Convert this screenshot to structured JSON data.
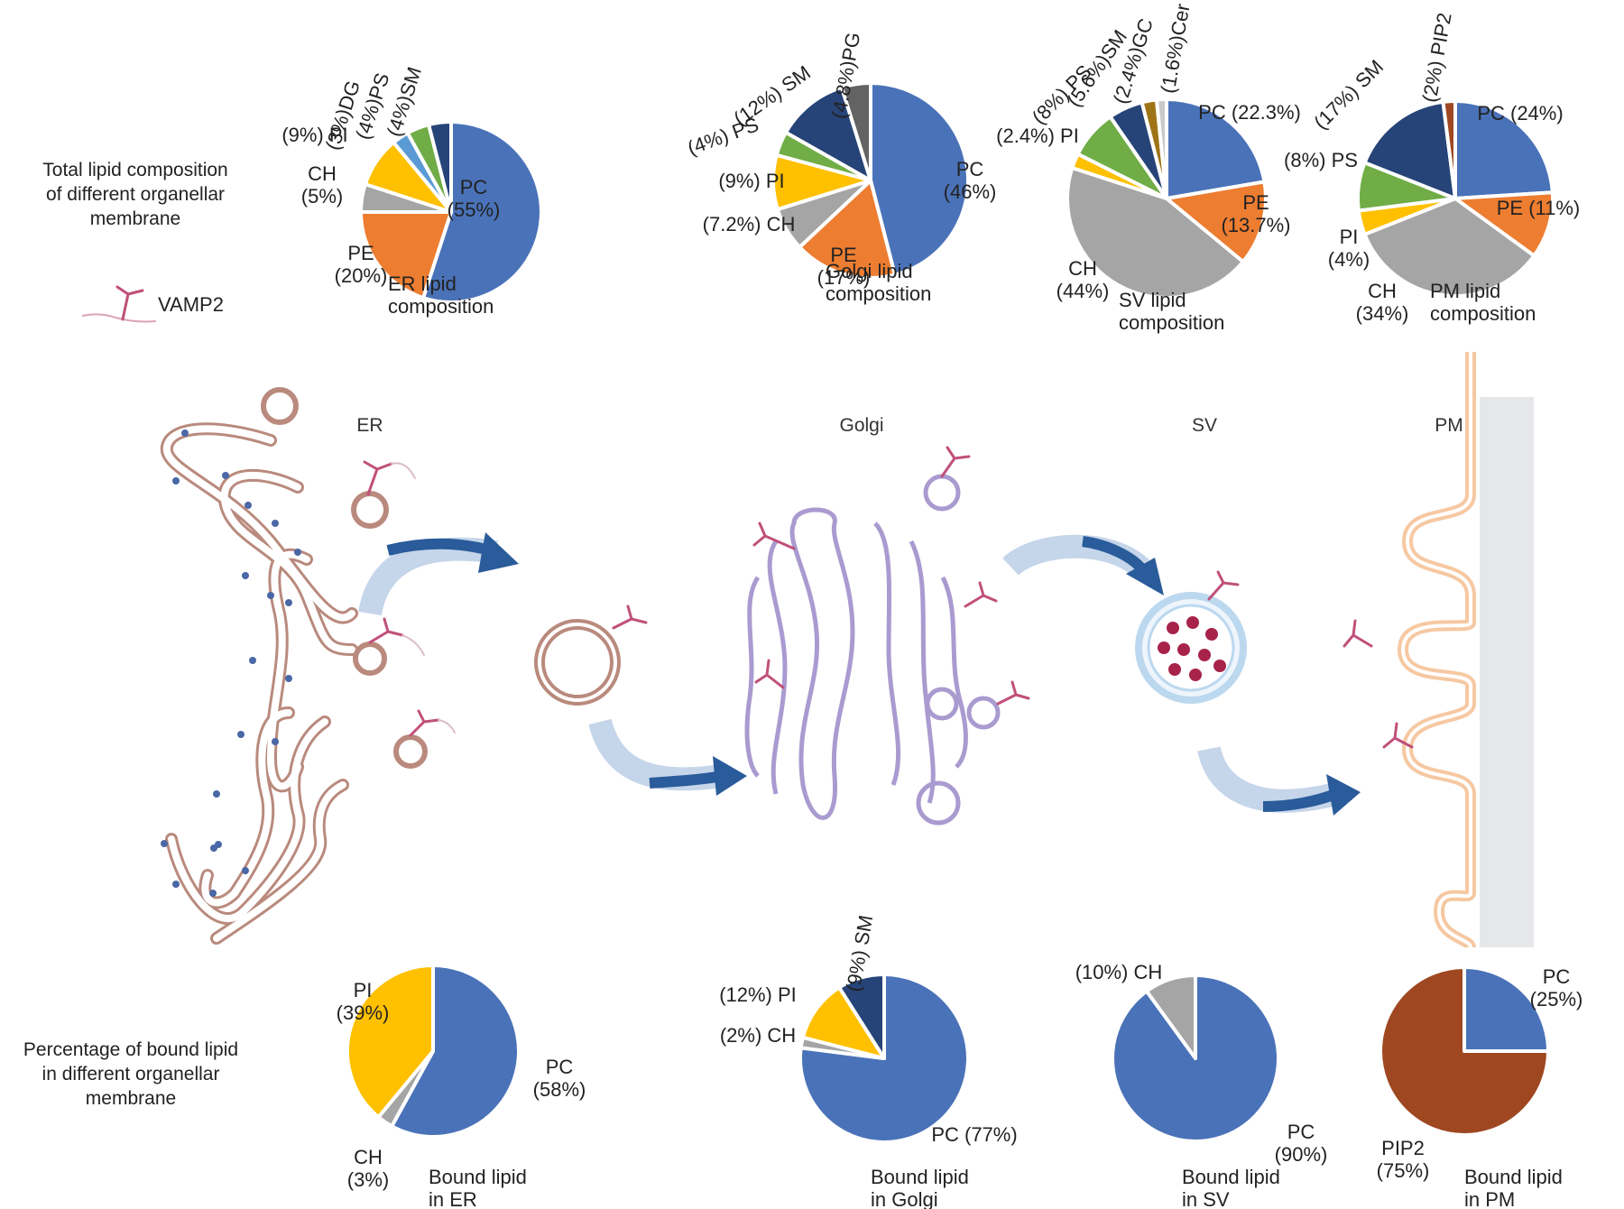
{
  "side_labels": {
    "top": [
      "Total lipid composition",
      "of different organellar",
      "membrane"
    ],
    "bottom": [
      "Percentage of bound lipid",
      "in different organellar",
      "membrane"
    ]
  },
  "legend": {
    "vamp2": "VAMP2"
  },
  "organelles": {
    "er": "ER",
    "golgi": "Golgi",
    "sv": "SV",
    "pm": "PM"
  },
  "colors": {
    "PC": "#4A72B8",
    "PE": "#ED7D31",
    "CH": "#A5A5A5",
    "PI": "#FFC000",
    "DG": "#5B9BD5",
    "PS": "#70AD47",
    "SM": "#264478",
    "PG": "#636363",
    "GC": "#9E7417",
    "Cer": "#C9C9C9",
    "PIP2": "#9E4721",
    "er_membrane": "#b98a7d",
    "golgi_membrane": "#a99bd0",
    "sv_membrane": "#bcd8ef",
    "pm_membrane": "#f6c8a2",
    "ribosome": "#4a67a6",
    "arrow": "#2a5b9a",
    "vamp2": "#c0507a"
  },
  "chart_data": [
    {
      "type": "pie",
      "id": "er_total",
      "title": [
        "ER lipid",
        "composition"
      ],
      "slices": [
        {
          "label": "PC",
          "value": 55,
          "text": [
            "PC",
            "(55%)"
          ]
        },
        {
          "label": "PE",
          "value": 20,
          "text": [
            "PE",
            "(20%)"
          ]
        },
        {
          "label": "CH",
          "value": 5,
          "text": [
            "CH",
            "(5%)"
          ]
        },
        {
          "label": "PI",
          "value": 9,
          "text": [
            "(9%) PI"
          ]
        },
        {
          "label": "DG",
          "value": 3,
          "text": [
            "(3%)DG"
          ]
        },
        {
          "label": "PS",
          "value": 4,
          "text": [
            "(4%)PS"
          ]
        },
        {
          "label": "SM",
          "value": 4,
          "text": [
            "(4%)SM"
          ]
        }
      ]
    },
    {
      "type": "pie",
      "id": "golgi_total",
      "title": [
        "Golgi lipid",
        "composition"
      ],
      "slices": [
        {
          "label": "PC",
          "value": 46,
          "text": [
            "PC",
            "(46%)"
          ]
        },
        {
          "label": "PE",
          "value": 17,
          "text": [
            "PE",
            "(17%)"
          ]
        },
        {
          "label": "CH",
          "value": 7.2,
          "text": [
            "(7.2%) CH"
          ]
        },
        {
          "label": "PI",
          "value": 9,
          "text": [
            "(9%) PI"
          ]
        },
        {
          "label": "PS",
          "value": 4,
          "text": [
            "(4%) PS"
          ]
        },
        {
          "label": "SM",
          "value": 12,
          "text": [
            "(12%) SM"
          ]
        },
        {
          "label": "PG",
          "value": 4.8,
          "text": [
            "(4.8%)PG"
          ]
        }
      ]
    },
    {
      "type": "pie",
      "id": "sv_total",
      "title": [
        "SV lipid",
        "composition"
      ],
      "slices": [
        {
          "label": "PC",
          "value": 22.3,
          "text": [
            "PC (22.3%)"
          ]
        },
        {
          "label": "PE",
          "value": 13.7,
          "text": [
            "PE",
            "(13.7%)"
          ]
        },
        {
          "label": "CH",
          "value": 44,
          "text": [
            "CH",
            "(44%)"
          ]
        },
        {
          "label": "PI",
          "value": 2.4,
          "text": [
            "(2.4%) PI"
          ]
        },
        {
          "label": "PS",
          "value": 8,
          "text": [
            "(8%) PS"
          ]
        },
        {
          "label": "SM",
          "value": 5.6,
          "text": [
            "(5.6%)SM"
          ]
        },
        {
          "label": "GC",
          "value": 2.4,
          "text": [
            "(2.4%)GC"
          ]
        },
        {
          "label": "Cer",
          "value": 1.6,
          "text": [
            "(1.6%)Cer"
          ]
        }
      ]
    },
    {
      "type": "pie",
      "id": "pm_total",
      "title": [
        "PM lipid",
        "composition"
      ],
      "slices": [
        {
          "label": "PC",
          "value": 24,
          "text": [
            "PC (24%)"
          ]
        },
        {
          "label": "PE",
          "value": 11,
          "text": [
            "PE (11%)"
          ]
        },
        {
          "label": "CH",
          "value": 34,
          "text": [
            "CH",
            "(34%)"
          ]
        },
        {
          "label": "PI",
          "value": 4,
          "text": [
            "PI",
            "(4%)"
          ]
        },
        {
          "label": "PS",
          "value": 8,
          "text": [
            "(8%) PS"
          ]
        },
        {
          "label": "SM",
          "value": 17,
          "text": [
            "(17%) SM"
          ]
        },
        {
          "label": "PIP2",
          "value": 2,
          "text": [
            "(2%) PIP2"
          ]
        }
      ]
    },
    {
      "type": "pie",
      "id": "er_bound",
      "title": [
        "Bound lipid",
        "in ER"
      ],
      "slices": [
        {
          "label": "PC",
          "value": 58,
          "text": [
            "PC",
            "(58%)"
          ]
        },
        {
          "label": "CH",
          "value": 3,
          "text": [
            "CH",
            "(3%)"
          ]
        },
        {
          "label": "PI",
          "value": 39,
          "text": [
            "PI",
            "(39%)"
          ]
        }
      ]
    },
    {
      "type": "pie",
      "id": "golgi_bound",
      "title": [
        "Bound lipid",
        "in Golgi"
      ],
      "slices": [
        {
          "label": "PC",
          "value": 77,
          "text": [
            "PC (77%)"
          ]
        },
        {
          "label": "CH",
          "value": 2,
          "text": [
            "(2%) CH"
          ]
        },
        {
          "label": "PI",
          "value": 12,
          "text": [
            "(12%) PI"
          ]
        },
        {
          "label": "SM",
          "value": 9,
          "text": [
            "(9%) SM"
          ]
        }
      ]
    },
    {
      "type": "pie",
      "id": "sv_bound",
      "title": [
        "Bound lipid",
        "in SV"
      ],
      "slices": [
        {
          "label": "PC",
          "value": 90,
          "text": [
            "PC",
            "(90%)"
          ]
        },
        {
          "label": "CH",
          "value": 10,
          "text": [
            "(10%) CH"
          ]
        }
      ]
    },
    {
      "type": "pie",
      "id": "pm_bound",
      "title": [
        "Bound lipid",
        "in PM"
      ],
      "slices": [
        {
          "label": "PC",
          "value": 25,
          "text": [
            "PC",
            "(25%)"
          ]
        },
        {
          "label": "PIP2",
          "value": 75,
          "text": [
            "PIP2",
            "(75%)"
          ]
        }
      ]
    }
  ]
}
